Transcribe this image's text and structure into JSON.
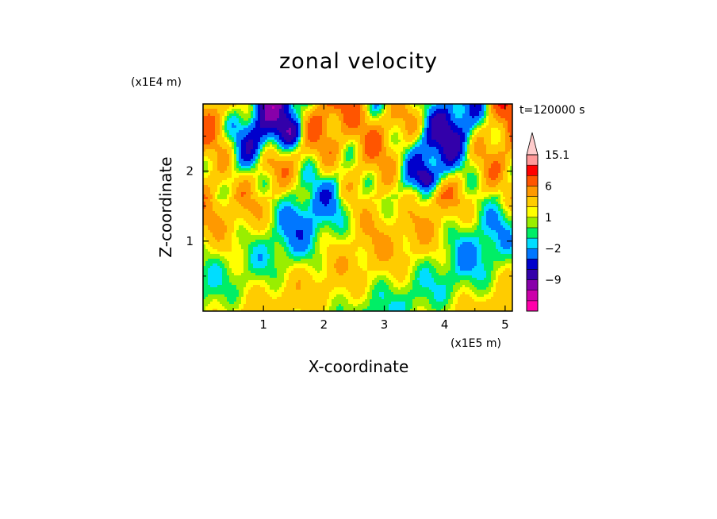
{
  "chart_data": {
    "type": "heatmap",
    "title": "zonal velocity",
    "xlabel": "X-coordinate",
    "ylabel": "Z-coordinate",
    "x_unit": "(x1E5 m)",
    "y_unit": "(x1E4 m)",
    "time_label": "t=120000 s",
    "xlim": [
      0,
      5.12
    ],
    "ylim": [
      0,
      2.96
    ],
    "x_ticks": [
      1,
      2,
      3,
      4,
      5
    ],
    "y_ticks": [
      1,
      2
    ],
    "colorbar": {
      "levels": [
        -15,
        -12,
        -9,
        -6,
        -4,
        -2,
        -1,
        0,
        1,
        2,
        4,
        6,
        9,
        12,
        15.1
      ],
      "colors": [
        "#ff00aa",
        "#cc00aa",
        "#8800aa",
        "#3300aa",
        "#0000cc",
        "#0077ff",
        "#00ddff",
        "#00ee66",
        "#99ee00",
        "#ffff00",
        "#ffcc00",
        "#ff9900",
        "#ff5500",
        "#ff0000",
        "#ff9999",
        "#ffcccc"
      ],
      "labels": [
        "15.1",
        "6",
        "1",
        "−2",
        "−9"
      ],
      "extend": "max"
    }
  }
}
